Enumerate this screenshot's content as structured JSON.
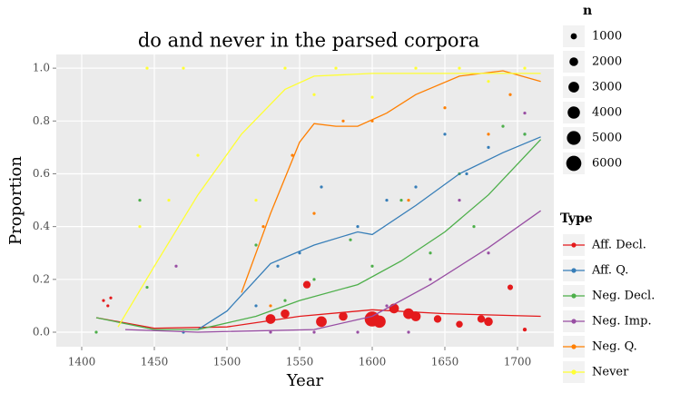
{
  "chart_data": {
    "type": "scatter",
    "title": "do and never in the parsed corpora",
    "x_label": "Year",
    "y_label": "Proportion",
    "xlim": [
      1382.5,
      1725
    ],
    "ylim": [
      -0.055,
      1.052
    ],
    "xticks": [
      1400,
      1450,
      1500,
      1550,
      1600,
      1650,
      1700
    ],
    "yticks": [
      {
        "value": 0,
        "label": "0.0"
      },
      {
        "value": 0.2,
        "label": "0.2"
      },
      {
        "value": 0.4,
        "label": "0.4"
      },
      {
        "value": 0.6,
        "label": "0.6"
      },
      {
        "value": 0.8,
        "label": "0.8"
      },
      {
        "value": 1,
        "label": "1.0"
      }
    ],
    "grid": true,
    "size_legend": {
      "title": "n",
      "values": [
        1000,
        2000,
        3000,
        4000,
        5000,
        6000
      ]
    },
    "legend_title": "Type",
    "series": [
      {
        "name": "Aff. Decl.",
        "color": "#e41a1c",
        "x": [
          1415,
          1418,
          1420,
          1530,
          1540,
          1555,
          1565,
          1580,
          1600,
          1605,
          1615,
          1625,
          1630,
          1645,
          1660,
          1675,
          1680,
          1695,
          1705
        ],
        "values": [
          0.12,
          0.1,
          0.13,
          0.05,
          0.07,
          0.18,
          0.04,
          0.06,
          0.05,
          0.04,
          0.09,
          0.07,
          0.06,
          0.05,
          0.03,
          0.05,
          0.04,
          0.17,
          0.01
        ],
        "sizes": [
          200,
          200,
          200,
          2500,
          2000,
          1500,
          3000,
          2000,
          6000,
          4000,
          2500,
          3000,
          2500,
          1500,
          1200,
          1500,
          2000,
          800,
          400
        ],
        "trend_x": [
          1410,
          1450,
          1500,
          1550,
          1600,
          1650,
          1716
        ],
        "trend": [
          0.055,
          0.015,
          0.02,
          0.06,
          0.085,
          0.07,
          0.06
        ]
      },
      {
        "name": "Aff. Q.",
        "color": "#377eb8",
        "x": [
          1470,
          1520,
          1535,
          1550,
          1565,
          1590,
          1610,
          1630,
          1650,
          1665,
          1680,
          1705
        ],
        "values": [
          0.0,
          0.1,
          0.25,
          0.3,
          0.55,
          0.4,
          0.5,
          0.55,
          0.75,
          0.6,
          0.7,
          0.75
        ],
        "sizes": [
          200,
          200,
          200,
          200,
          200,
          200,
          200,
          200,
          200,
          200,
          200,
          200
        ],
        "trend_x": [
          1480,
          1500,
          1530,
          1560,
          1590,
          1600,
          1630,
          1660,
          1690,
          1716
        ],
        "trend": [
          0.01,
          0.08,
          0.26,
          0.33,
          0.38,
          0.37,
          0.48,
          0.6,
          0.68,
          0.74
        ]
      },
      {
        "name": "Neg. Decl.",
        "color": "#4daf4a",
        "x": [
          1410,
          1440,
          1445,
          1520,
          1540,
          1560,
          1585,
          1600,
          1620,
          1640,
          1660,
          1670,
          1690,
          1705
        ],
        "values": [
          0.0,
          0.5,
          0.17,
          0.33,
          0.12,
          0.2,
          0.35,
          0.25,
          0.5,
          0.3,
          0.6,
          0.4,
          0.78,
          0.75
        ],
        "sizes": [
          200,
          200,
          200,
          200,
          200,
          200,
          200,
          200,
          200,
          200,
          200,
          200,
          200,
          200
        ],
        "trend_x": [
          1410,
          1450,
          1480,
          1520,
          1550,
          1590,
          1620,
          1650,
          1680,
          1716
        ],
        "trend": [
          0.055,
          0.01,
          0.01,
          0.06,
          0.12,
          0.18,
          0.27,
          0.38,
          0.52,
          0.73
        ]
      },
      {
        "name": "Neg. Imp.",
        "color": "#984ea3",
        "x": [
          1465,
          1530,
          1560,
          1590,
          1610,
          1625,
          1640,
          1660,
          1680,
          1705
        ],
        "values": [
          0.25,
          0.0,
          0.0,
          0.0,
          0.1,
          0.0,
          0.2,
          0.5,
          0.3,
          0.83
        ],
        "sizes": [
          200,
          200,
          200,
          200,
          200,
          200,
          200,
          200,
          200,
          200
        ],
        "trend_x": [
          1430,
          1480,
          1560,
          1600,
          1640,
          1680,
          1716
        ],
        "trend": [
          0.01,
          0.0,
          0.01,
          0.06,
          0.18,
          0.32,
          0.46
        ]
      },
      {
        "name": "Neg. Q.",
        "color": "#ff7f00",
        "x": [
          1525,
          1530,
          1545,
          1560,
          1580,
          1600,
          1625,
          1650,
          1680,
          1695
        ],
        "values": [
          0.4,
          0.1,
          0.67,
          0.45,
          0.8,
          0.8,
          0.5,
          0.85,
          0.75,
          0.9
        ],
        "sizes": [
          200,
          200,
          200,
          200,
          200,
          200,
          200,
          200,
          200,
          200
        ],
        "trend_x": [
          1510,
          1530,
          1550,
          1560,
          1575,
          1590,
          1610,
          1630,
          1660,
          1690,
          1716
        ],
        "trend": [
          0.15,
          0.45,
          0.72,
          0.79,
          0.78,
          0.78,
          0.83,
          0.9,
          0.97,
          0.99,
          0.95
        ]
      },
      {
        "name": "Never",
        "color": "#ffff33",
        "x": [
          1440,
          1445,
          1460,
          1470,
          1480,
          1520,
          1540,
          1560,
          1575,
          1600,
          1630,
          1660,
          1680,
          1705
        ],
        "values": [
          0.4,
          1.0,
          0.5,
          1.0,
          0.67,
          0.5,
          1.0,
          0.9,
          1.0,
          0.89,
          1.0,
          1.0,
          0.95,
          1.0
        ],
        "sizes": [
          200,
          200,
          200,
          200,
          200,
          200,
          200,
          200,
          200,
          200,
          200,
          200,
          200,
          200
        ],
        "trend_x": [
          1425,
          1450,
          1480,
          1510,
          1540,
          1560,
          1600,
          1716
        ],
        "trend": [
          0.02,
          0.25,
          0.52,
          0.75,
          0.92,
          0.97,
          0.98,
          0.98
        ]
      }
    ]
  }
}
